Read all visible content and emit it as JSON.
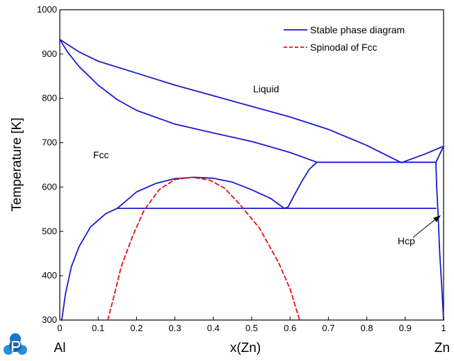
{
  "chart_data": {
    "type": "line",
    "title": "",
    "xlabel": "x(Zn)",
    "ylabel": "Temperature [K]",
    "xlim": [
      0,
      1
    ],
    "ylim": [
      300,
      1000
    ],
    "x_ticks": [
      "0",
      "0.1",
      "0.2",
      "0.3",
      "0.4",
      "0.5",
      "0.6",
      "0.7",
      "0.8",
      "0.9",
      "1"
    ],
    "y_ticks": [
      "300",
      "400",
      "500",
      "600",
      "700",
      "800",
      "900",
      "1000"
    ],
    "endpoint_labels": {
      "left": "Al",
      "right": "Zn"
    },
    "grid": false,
    "legend_position": "top-right",
    "annotations": {
      "liquid": "Liquid",
      "fcc": "Fcc",
      "hcp": "Hcp"
    },
    "series": [
      {
        "name": "Stable phase diagram",
        "color": "#1a1acc",
        "style": "solid",
        "segments": [
          [
            [
              0.0,
              933
            ],
            [
              0.05,
              905
            ],
            [
              0.1,
              884
            ],
            [
              0.2,
              857
            ],
            [
              0.3,
              830
            ],
            [
              0.4,
              806
            ],
            [
              0.5,
              782
            ],
            [
              0.6,
              758
            ],
            [
              0.7,
              730
            ],
            [
              0.8,
              694
            ],
            [
              0.89,
              655
            ]
          ],
          [
            [
              0.0,
              933
            ],
            [
              0.02,
              905
            ],
            [
              0.05,
              872
            ],
            [
              0.1,
              830
            ],
            [
              0.15,
              797
            ],
            [
              0.2,
              773
            ],
            [
              0.3,
              742
            ],
            [
              0.4,
              722
            ],
            [
              0.5,
              703
            ],
            [
              0.6,
              678
            ],
            [
              0.67,
              656
            ]
          ],
          [
            [
              0.89,
              655
            ],
            [
              0.95,
              674
            ],
            [
              1.0,
              692
            ]
          ],
          [
            [
              0.67,
              656
            ],
            [
              0.98,
              656
            ],
            [
              1.0,
              692
            ]
          ],
          [
            [
              0.67,
              656
            ],
            [
              0.65,
              640
            ],
            [
              0.63,
              612
            ],
            [
              0.61,
              580
            ],
            [
              0.595,
              555
            ],
            [
              0.585,
              552
            ]
          ],
          [
            [
              0.15,
              552
            ],
            [
              0.98,
              552
            ]
          ],
          [
            [
              0.005,
              300
            ],
            [
              0.015,
              360
            ],
            [
              0.03,
              420
            ],
            [
              0.05,
              465
            ],
            [
              0.08,
              510
            ],
            [
              0.12,
              540
            ],
            [
              0.15,
              552
            ],
            [
              0.2,
              589
            ],
            [
              0.25,
              608
            ],
            [
              0.3,
              619
            ],
            [
              0.35,
              622
            ],
            [
              0.4,
              620
            ],
            [
              0.45,
              611
            ],
            [
              0.5,
              594
            ],
            [
              0.55,
              574
            ],
            [
              0.585,
              552
            ]
          ],
          [
            [
              0.98,
              656
            ],
            [
              0.982,
              600
            ],
            [
              0.985,
              552
            ],
            [
              0.99,
              450
            ],
            [
              0.995,
              380
            ],
            [
              1.0,
              300
            ]
          ]
        ]
      },
      {
        "name": "Spinodal of Fcc",
        "color": "#e01010",
        "style": "dashed",
        "segments": [
          [
            [
              0.125,
              300
            ],
            [
              0.14,
              350
            ],
            [
              0.16,
              420
            ],
            [
              0.19,
              490
            ],
            [
              0.22,
              548
            ],
            [
              0.26,
              595
            ],
            [
              0.3,
              617
            ],
            [
              0.345,
              622
            ],
            [
              0.39,
              616
            ],
            [
              0.43,
              597
            ],
            [
              0.47,
              560
            ],
            [
              0.52,
              508
            ],
            [
              0.57,
              430
            ],
            [
              0.6,
              370
            ],
            [
              0.625,
              300
            ]
          ]
        ]
      }
    ]
  }
}
